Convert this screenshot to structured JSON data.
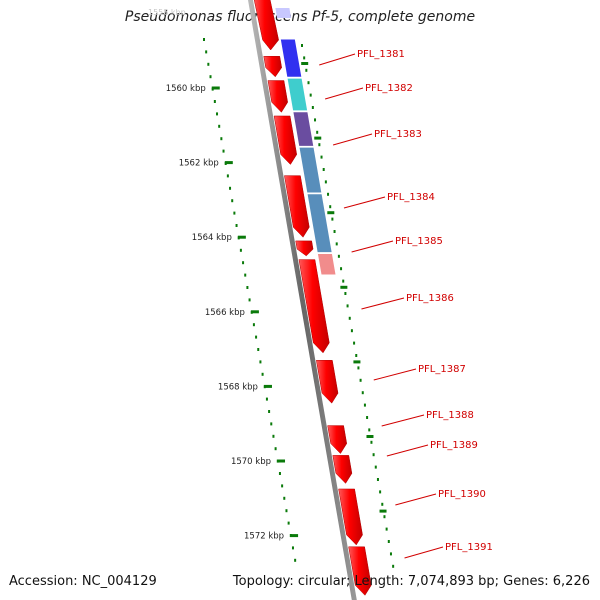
{
  "header": {
    "title": "Pseudomonas fluorescens Pf-5, complete genome",
    "faded_tick_label": "1558 kbp"
  },
  "footer": {
    "accession": "Accession: NC_004129",
    "summary": "Topology: circular; Length: 7,074,893 bp; Genes: 6,226"
  },
  "map": {
    "kbp_ticks": [
      {
        "label": "1560 kbp",
        "pos": 1560
      },
      {
        "label": "1562 kbp",
        "pos": 1562
      },
      {
        "label": "1564 kbp",
        "pos": 1564
      },
      {
        "label": "1566 kbp",
        "pos": 1566
      },
      {
        "label": "1568 kbp",
        "pos": 1568
      },
      {
        "label": "1570 kbp",
        "pos": 1570
      },
      {
        "label": "1572 kbp",
        "pos": 1572
      }
    ],
    "genes": [
      {
        "label": "PFL_1381",
        "start": 1559.15,
        "end": 1559.7
      },
      {
        "label": "PFL_1382",
        "start": 1559.8,
        "end": 1560.65
      },
      {
        "label": "PFL_1383",
        "start": 1560.75,
        "end": 1562.05
      },
      {
        "label": "PFL_1384",
        "start": 1562.35,
        "end": 1564.0
      },
      {
        "label": "PFL_1385",
        "start": 1564.1,
        "end": 1564.5
      },
      {
        "label": "PFL_1386",
        "start": 1564.6,
        "end": 1567.1
      },
      {
        "label": "PFL_1387",
        "start": 1567.3,
        "end": 1568.45
      },
      {
        "label": "PFL_1388",
        "start": 1569.05,
        "end": 1569.8
      },
      {
        "label": "PFL_1389",
        "start": 1569.85,
        "end": 1570.6
      },
      {
        "label": "PFL_1390",
        "start": 1570.75,
        "end": 1572.25
      },
      {
        "label": "PFL_1391",
        "start": 1572.3,
        "end": 1573.6
      }
    ],
    "colors": {
      "gene": "#ff0000",
      "gene_label": "#d10000",
      "tick": "#0a7a0a",
      "backbone": "#888888",
      "cog_blue": "#1a1aee",
      "cog_cyan": "#2ac8c8",
      "cog_purple": "#5a3a96",
      "cog_steel": "#4682b4",
      "cog_pink": "#f08080"
    }
  }
}
